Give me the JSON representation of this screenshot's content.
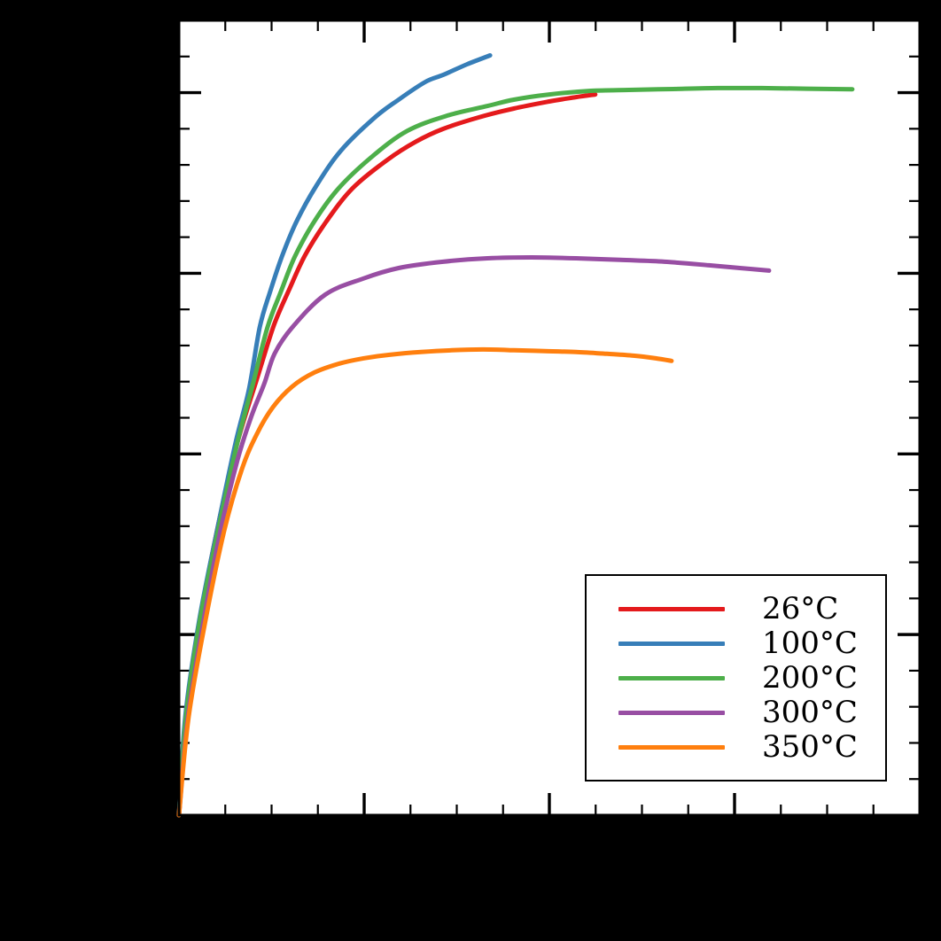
{
  "figure": {
    "background_color": "#000000",
    "plot_background_color": "#ffffff",
    "spine_color": "#000000",
    "tick_color": "#000000"
  },
  "chart_data": {
    "type": "line",
    "title": "",
    "xlabel": "",
    "ylabel": "",
    "note": "Axis tick labels and axis titles are not visible in the image (black margin); numeric values are estimated from tick spacing: x majors every 0.05, y majors every 100.",
    "x_axis": {
      "min": 0,
      "max": 0.2,
      "major_tick_step": 0.05,
      "minor_tick_step": 0.0125,
      "ticks_direction": "in",
      "tick_labels_visible": false
    },
    "y_axis": {
      "min": 0,
      "max": 440,
      "major_tick_step": 100,
      "minor_tick_step": 20,
      "ticks_direction": "in",
      "tick_labels_visible": false
    },
    "legend": {
      "position": "lower right",
      "border_color": "#000000",
      "background": "#ffffff"
    },
    "series": [
      {
        "name": "26°C",
        "color": "#e41a1c",
        "points": [
          [
            0.0,
            0.0
          ],
          [
            0.0019,
            54.4
          ],
          [
            0.0057,
            108.3
          ],
          [
            0.0105,
            159.8
          ],
          [
            0.0158,
            206.4
          ],
          [
            0.0213,
            243.1
          ],
          [
            0.0256,
            271.1
          ],
          [
            0.0297,
            290.7
          ],
          [
            0.034,
            309.8
          ],
          [
            0.0397,
            328.4
          ],
          [
            0.0469,
            347.1
          ],
          [
            0.0562,
            362.7
          ],
          [
            0.0641,
            373.0
          ],
          [
            0.0713,
            379.9
          ],
          [
            0.0809,
            386.3
          ],
          [
            0.0904,
            391.2
          ],
          [
            0.1,
            395.1
          ],
          [
            0.1072,
            397.5
          ],
          [
            0.1124,
            399.0
          ]
        ]
      },
      {
        "name": "100°C",
        "color": "#377eb8",
        "points": [
          [
            0.0,
            0.0
          ],
          [
            0.0017,
            54.4
          ],
          [
            0.0055,
            108.3
          ],
          [
            0.0105,
            159.8
          ],
          [
            0.0153,
            206.4
          ],
          [
            0.0189,
            235.8
          ],
          [
            0.0218,
            270.1
          ],
          [
            0.0246,
            289.7
          ],
          [
            0.0278,
            309.3
          ],
          [
            0.0318,
            328.9
          ],
          [
            0.0371,
            348.5
          ],
          [
            0.0438,
            368.1
          ],
          [
            0.0529,
            386.3
          ],
          [
            0.0593,
            396.1
          ],
          [
            0.0665,
            405.9
          ],
          [
            0.0713,
            409.8
          ],
          [
            0.0778,
            415.7
          ],
          [
            0.084,
            420.6
          ]
        ]
      },
      {
        "name": "200°C",
        "color": "#4daf4a",
        "points": [
          [
            0.0,
            0.0
          ],
          [
            0.0019,
            54.4
          ],
          [
            0.0057,
            108.3
          ],
          [
            0.0108,
            159.8
          ],
          [
            0.0158,
            206.4
          ],
          [
            0.0199,
            238.2
          ],
          [
            0.0239,
            270.1
          ],
          [
            0.0275,
            289.7
          ],
          [
            0.0313,
            309.3
          ],
          [
            0.0366,
            328.9
          ],
          [
            0.0433,
            347.5
          ],
          [
            0.0522,
            364.7
          ],
          [
            0.0617,
            378.9
          ],
          [
            0.0725,
            387.3
          ],
          [
            0.0833,
            392.6
          ],
          [
            0.0904,
            396.1
          ],
          [
            0.1,
            399.0
          ],
          [
            0.1112,
            401.0
          ],
          [
            0.1215,
            401.5
          ],
          [
            0.1335,
            402.0
          ],
          [
            0.1455,
            402.5
          ],
          [
            0.1574,
            402.5
          ],
          [
            0.1694,
            402.2
          ],
          [
            0.1818,
            401.9
          ]
        ]
      },
      {
        "name": "300°C",
        "color": "#984ea3",
        "points": [
          [
            0.0,
            0.0
          ],
          [
            0.0024,
            54.4
          ],
          [
            0.0067,
            108.3
          ],
          [
            0.0112,
            157.4
          ],
          [
            0.0158,
            196.6
          ],
          [
            0.0196,
            221.1
          ],
          [
            0.023,
            238.7
          ],
          [
            0.0258,
            255.4
          ],
          [
            0.0306,
            270.1
          ],
          [
            0.0395,
            288.2
          ],
          [
            0.0498,
            297.1
          ],
          [
            0.0593,
            302.9
          ],
          [
            0.0713,
            306.4
          ],
          [
            0.0833,
            308.3
          ],
          [
            0.0952,
            308.8
          ],
          [
            0.1072,
            308.3
          ],
          [
            0.1191,
            307.4
          ],
          [
            0.1311,
            306.4
          ],
          [
            0.1431,
            304.4
          ],
          [
            0.1514,
            302.9
          ],
          [
            0.1593,
            301.5
          ]
        ]
      },
      {
        "name": "350°C",
        "color": "#ff7f0e",
        "points": [
          [
            0.0,
            0.0
          ],
          [
            0.0026,
            54.4
          ],
          [
            0.0072,
            108.3
          ],
          [
            0.0122,
            157.4
          ],
          [
            0.017,
            191.7
          ],
          [
            0.0211,
            211.3
          ],
          [
            0.0254,
            226.0
          ],
          [
            0.0306,
            237.3
          ],
          [
            0.0366,
            245.1
          ],
          [
            0.0433,
            250.0
          ],
          [
            0.0498,
            252.9
          ],
          [
            0.0569,
            254.9
          ],
          [
            0.0653,
            256.4
          ],
          [
            0.0737,
            257.4
          ],
          [
            0.0821,
            257.8
          ],
          [
            0.0904,
            257.4
          ],
          [
            0.0988,
            256.9
          ],
          [
            0.1072,
            256.4
          ],
          [
            0.1156,
            255.4
          ],
          [
            0.1227,
            254.4
          ],
          [
            0.1287,
            252.9
          ],
          [
            0.133,
            251.5
          ]
        ]
      }
    ]
  }
}
